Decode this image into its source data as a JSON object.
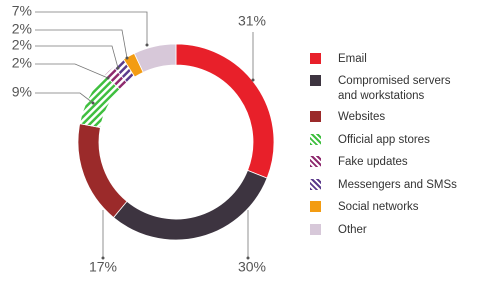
{
  "chart_data": {
    "type": "donut",
    "categories": [
      "Email",
      "Compromised servers and workstations",
      "Websites",
      "Official app stores",
      "Fake updates",
      "Messengers and SMSs",
      "Social networks",
      "Other"
    ],
    "values": [
      31,
      30,
      17,
      9,
      2,
      2,
      2,
      7
    ],
    "value_labels": [
      "31%",
      "30%",
      "17%",
      "9%",
      "2%",
      "2%",
      "2%",
      "7%"
    ],
    "colors": [
      "#e8202a",
      "#3d3440",
      "#9b2a2a",
      "#3fbf3f",
      "#8e2a6e",
      "#5b3b8c",
      "#f39c12",
      "#d7c8d9"
    ],
    "hatched": [
      false,
      false,
      false,
      true,
      true,
      true,
      false,
      false
    ]
  }
}
